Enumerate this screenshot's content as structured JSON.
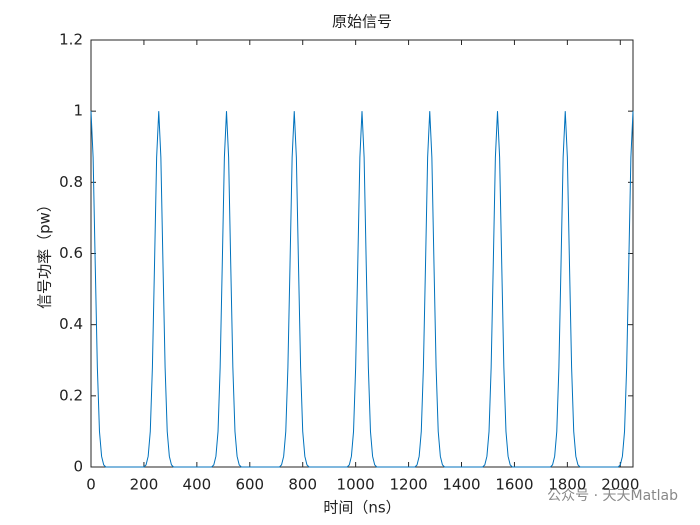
{
  "chart_data": {
    "type": "line",
    "title": "原始信号",
    "x_label": "时间（ns）",
    "y_label": "信号功率（pw）",
    "x": [
      0,
      8,
      16,
      24,
      32,
      40,
      48,
      56,
      200,
      208,
      216,
      224,
      232,
      240,
      248,
      256,
      264,
      272,
      280,
      288,
      296,
      304,
      312,
      456,
      464,
      472,
      480,
      488,
      496,
      504,
      512,
      520,
      528,
      536,
      544,
      552,
      560,
      568,
      712,
      720,
      728,
      736,
      744,
      752,
      760,
      768,
      776,
      784,
      792,
      800,
      808,
      816,
      824,
      968,
      976,
      984,
      992,
      1000,
      1008,
      1016,
      1024,
      1032,
      1040,
      1048,
      1056,
      1064,
      1072,
      1080,
      1224,
      1232,
      1240,
      1248,
      1256,
      1264,
      1272,
      1280,
      1288,
      1296,
      1304,
      1312,
      1320,
      1328,
      1336,
      1480,
      1488,
      1496,
      1504,
      1512,
      1520,
      1528,
      1536,
      1544,
      1552,
      1560,
      1568,
      1576,
      1584,
      1592,
      1736,
      1744,
      1752,
      1760,
      1768,
      1776,
      1784,
      1792,
      1800,
      1808,
      1816,
      1824,
      1832,
      1840,
      1848,
      1992,
      2000,
      2008,
      2016,
      2024,
      2032,
      2040,
      2048
    ],
    "values": [
      1,
      0.87,
      0.57,
      0.28,
      0.1,
      0.03,
      0.006,
      0,
      0,
      0.006,
      0.03,
      0.1,
      0.28,
      0.57,
      0.87,
      1,
      0.87,
      0.57,
      0.28,
      0.1,
      0.03,
      0.006,
      0,
      0,
      0.006,
      0.03,
      0.1,
      0.28,
      0.57,
      0.87,
      1,
      0.87,
      0.57,
      0.28,
      0.1,
      0.03,
      0.006,
      0,
      0,
      0.006,
      0.03,
      0.1,
      0.28,
      0.57,
      0.87,
      1,
      0.87,
      0.57,
      0.28,
      0.1,
      0.03,
      0.006,
      0,
      0,
      0.006,
      0.03,
      0.1,
      0.28,
      0.57,
      0.87,
      1,
      0.87,
      0.57,
      0.28,
      0.1,
      0.03,
      0.006,
      0,
      0,
      0.006,
      0.03,
      0.1,
      0.28,
      0.57,
      0.87,
      1,
      0.87,
      0.57,
      0.28,
      0.1,
      0.03,
      0.006,
      0,
      0,
      0.006,
      0.03,
      0.1,
      0.28,
      0.57,
      0.87,
      1,
      0.87,
      0.57,
      0.28,
      0.1,
      0.03,
      0.006,
      0,
      0,
      0.006,
      0.03,
      0.1,
      0.28,
      0.57,
      0.87,
      1,
      0.87,
      0.57,
      0.28,
      0.1,
      0.03,
      0.006,
      0,
      0,
      0.006,
      0.03,
      0.1,
      0.28,
      0.57,
      0.87,
      1
    ],
    "color": "#0072bd",
    "xlim": [
      0,
      2048
    ],
    "xticks": [
      0,
      200,
      400,
      600,
      800,
      1000,
      1200,
      1400,
      1600,
      1800,
      2000
    ],
    "ylim": [
      0,
      1.2
    ],
    "yticks": [
      0,
      0.2,
      0.4,
      0.6,
      0.8,
      1,
      1.2
    ],
    "watermark": "公众号 · 天天Matlab"
  }
}
